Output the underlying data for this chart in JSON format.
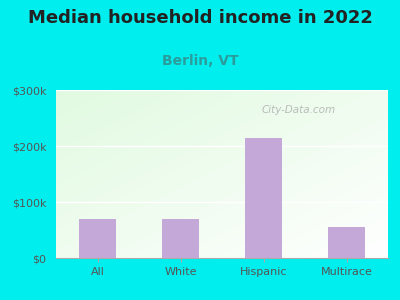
{
  "title": "Median household income in 2022",
  "subtitle": "Berlin, VT",
  "categories": [
    "All",
    "White",
    "Hispanic",
    "Multirace"
  ],
  "values": [
    70000,
    70000,
    215000,
    55000
  ],
  "bar_color": "#C4A8D8",
  "background_color": "#00EEEE",
  "title_fontsize": 13,
  "subtitle_fontsize": 10,
  "tick_color": "#555555",
  "tick_fontsize": 8,
  "ylim": [
    0,
    300000
  ],
  "yticks": [
    0,
    100000,
    200000,
    300000
  ],
  "ytick_labels": [
    "$0",
    "$100k",
    "$200k",
    "$300k"
  ],
  "watermark": "City-Data.com",
  "subtitle_color": "#2B9C9C"
}
